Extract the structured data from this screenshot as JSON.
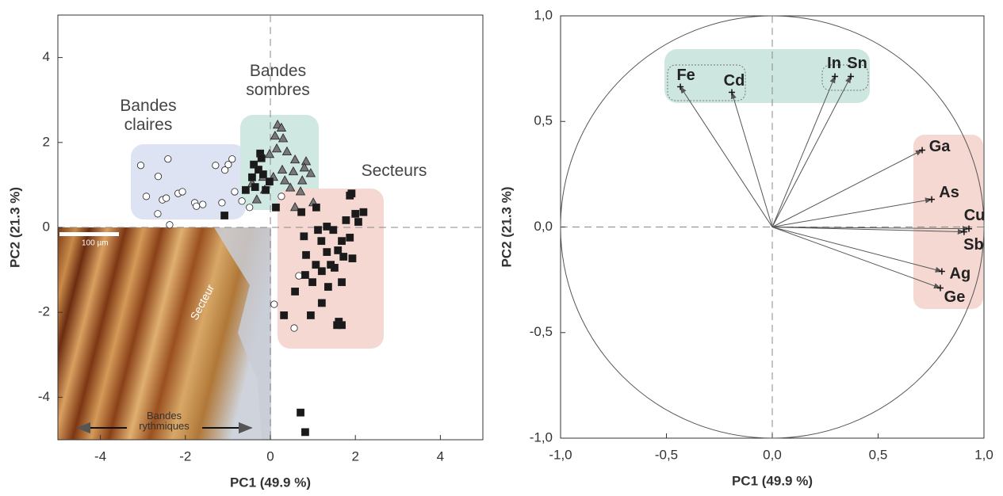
{
  "chart_data": [
    {
      "type": "scatter",
      "xlabel": "PC1  (49.9 %)",
      "ylabel": "PC2  (21.3 %)",
      "xlim": [
        -5,
        5
      ],
      "ylim": [
        -5,
        5
      ],
      "xticks": [
        -4,
        -2,
        0,
        2,
        4
      ],
      "yticks": [
        -4,
        -2,
        0,
        2,
        4
      ],
      "annotations": [
        "100 µm",
        "Secteur",
        "Bandes rythmiques"
      ],
      "series": [
        {
          "name": "Bandes claires",
          "marker": "circle",
          "color": "#ffffff",
          "x": [
            -3.05,
            -2.41,
            -2.64,
            -2.92,
            -2.54,
            -2.45,
            -2.17,
            -2.65,
            -2.37,
            -1.78,
            -1.74,
            -1.59,
            -1.29,
            -1.07,
            -0.99,
            -0.9,
            -1.14,
            -0.84,
            -0.67,
            -0.49,
            0.26,
            0.67,
            0.09,
            0.56,
            -2.07
          ],
          "values": [
            1.46,
            1.61,
            1.2,
            0.73,
            0.65,
            0.69,
            0.8,
            0.32,
            0.06,
            0.58,
            0.5,
            0.54,
            1.46,
            1.35,
            1.48,
            1.61,
            0.58,
            0.84,
            0.62,
            0.47,
            0.73,
            -1.14,
            -1.81,
            -2.37,
            0.84
          ]
        },
        {
          "name": "Bandes sombres",
          "marker": "triangle",
          "color": "#777777",
          "x": [
            0.17,
            0.26,
            0.11,
            0.3,
            0.15,
            0.39,
            -0.02,
            0.58,
            0.84,
            0.8,
            0.28,
            0.54,
            0.95,
            -0.17,
            0.07,
            0.34,
            0.75,
            -0.43,
            -0.13,
            0.47,
            0.71,
            -0.32,
            0.58,
            1.01
          ],
          "values": [
            2.41,
            2.34,
            2.15,
            2.09,
            1.85,
            1.78,
            1.72,
            1.59,
            1.55,
            1.4,
            1.35,
            1.31,
            1.27,
            1.18,
            1.18,
            1.1,
            1.1,
            1.03,
            0.88,
            0.93,
            0.84,
            0.65,
            0.47,
            0.58
          ]
        },
        {
          "name": "Secteurs",
          "marker": "square",
          "color": "#1a1a1a",
          "x": [
            -0.24,
            -0.21,
            -0.39,
            -0.28,
            -0.17,
            -0.43,
            -0.02,
            -0.36,
            -0.11,
            -0.58,
            0.13,
            -1.08,
            0.73,
            1.08,
            1.87,
            1.91,
            2.19,
            2.0,
            1.78,
            2.07,
            1.33,
            1.48,
            1.12,
            0.79,
            1.2,
            1.68,
            1.87,
            0.84,
            1.33,
            1.59,
            1.72,
            1.93,
            1.42,
            1.07,
            1.21,
            1.51,
            0.82,
            0.99,
            1.68,
            1.36,
            0.58,
            1.21,
            0.95,
            0.32,
            1.61,
            1.57,
            1.68,
            0.71,
            0.82
          ],
          "values": [
            1.74,
            1.63,
            1.48,
            1.36,
            1.25,
            1.18,
            1.08,
            0.95,
            0.88,
            0.88,
            0.47,
            0.28,
            0.36,
            0.47,
            0.75,
            0.8,
            0.36,
            0.32,
            0.17,
            0.13,
            0.02,
            -0.06,
            -0.06,
            -0.21,
            -0.32,
            -0.32,
            -0.24,
            -0.65,
            -0.58,
            -0.54,
            -0.69,
            -0.73,
            -0.88,
            -0.88,
            -1.03,
            -0.95,
            -1.12,
            -1.29,
            -1.29,
            -1.4,
            -1.51,
            -1.78,
            -2.07,
            -2.07,
            -2.22,
            -2.3,
            -2.3,
            -4.36,
            -4.82
          ]
        }
      ]
    },
    {
      "type": "biplot",
      "xlabel": "PC1  (49.9 %)",
      "ylabel": "PC2  (21.3 %)",
      "xlim": [
        -1,
        1
      ],
      "ylim": [
        -1,
        1
      ],
      "xticks": [
        {
          "value": -1,
          "label": "-1,0"
        },
        {
          "value": -0.5,
          "label": "-0,5"
        },
        {
          "value": 0,
          "label": "0,0"
        },
        {
          "value": 0.5,
          "label": "0,5"
        },
        {
          "value": 1,
          "label": "1,0"
        }
      ],
      "yticks": [
        {
          "value": -1,
          "label": "-1,0"
        },
        {
          "value": -0.5,
          "label": "-0,5"
        },
        {
          "value": 0,
          "label": "0,0"
        },
        {
          "value": 0.5,
          "label": "0,5"
        },
        {
          "value": 1,
          "label": "1,0"
        }
      ],
      "color": "#555555",
      "categories": [
        "Fe",
        "Cd",
        "In",
        "Sn",
        "Ga",
        "As",
        "Cu",
        "Sb",
        "Ag",
        "Ge"
      ],
      "x": [
        -0.434,
        -0.191,
        0.296,
        0.371,
        0.708,
        0.753,
        0.929,
        0.906,
        0.801,
        0.794
      ],
      "values": [
        0.664,
        0.638,
        0.713,
        0.713,
        0.364,
        0.131,
        -0.008,
        -0.023,
        -0.21,
        -0.289
      ]
    }
  ]
}
